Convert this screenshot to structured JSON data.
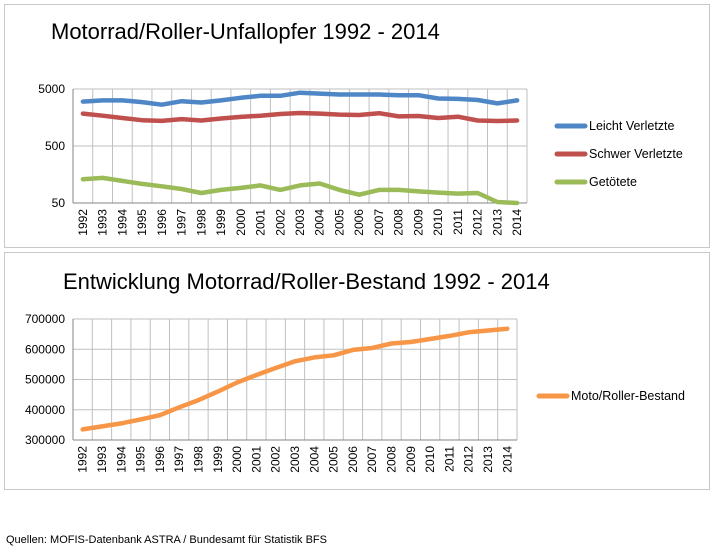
{
  "chart_data": [
    {
      "type": "line",
      "title": "Motorrad/Roller-Unfallopfer 1992 - 2014",
      "xlabel": "",
      "ylabel": "",
      "yscale": "log",
      "ylim": [
        50,
        5000
      ],
      "yticks": [
        50,
        500,
        5000
      ],
      "grid": true,
      "legend": "right",
      "categories": [
        "1992",
        "1993",
        "1994",
        "1995",
        "1996",
        "1997",
        "1998",
        "1999",
        "2000",
        "2001",
        "2002",
        "2003",
        "2004",
        "2005",
        "2006",
        "2007",
        "2008",
        "2009",
        "2010",
        "2011",
        "2012",
        "2013",
        "2014"
      ],
      "series": [
        {
          "name": "Leicht Verletzte",
          "color": "#4f86c6",
          "values": [
            3000,
            3150,
            3150,
            2950,
            2650,
            3050,
            2900,
            3150,
            3500,
            3800,
            3800,
            4300,
            4150,
            4000,
            4000,
            4000,
            3900,
            3900,
            3400,
            3350,
            3200,
            2800,
            3150
          ]
        },
        {
          "name": "Schwer Verletzte",
          "color": "#c0504d",
          "values": [
            1850,
            1700,
            1550,
            1420,
            1380,
            1480,
            1400,
            1520,
            1620,
            1700,
            1820,
            1900,
            1850,
            1780,
            1750,
            1880,
            1650,
            1680,
            1550,
            1630,
            1400,
            1370,
            1400
          ]
        },
        {
          "name": "Getötete",
          "color": "#9bbb59",
          "values": [
            130,
            138,
            122,
            108,
            98,
            88,
            75,
            85,
            92,
            102,
            85,
            102,
            110,
            85,
            70,
            85,
            85,
            80,
            76,
            73,
            75,
            52,
            50
          ]
        }
      ]
    },
    {
      "type": "line",
      "title": "Entwicklung Motorrad/Roller-Bestand 1992 - 2014",
      "xlabel": "",
      "ylabel": "",
      "ylim": [
        300000,
        700000
      ],
      "yticks": [
        300000,
        400000,
        500000,
        600000,
        700000
      ],
      "grid": true,
      "legend": "right",
      "categories": [
        "1992",
        "1993",
        "1994",
        "1995",
        "1996",
        "1997",
        "1998",
        "1999",
        "2000",
        "2001",
        "2002",
        "2003",
        "2004",
        "2005",
        "2006",
        "2007",
        "2008",
        "2009",
        "2010",
        "2011",
        "2012",
        "2013",
        "2014"
      ],
      "series": [
        {
          "name": "Moto/Roller-Bestand",
          "color": "#f79646",
          "values": [
            335000,
            345000,
            355000,
            368000,
            382000,
            408000,
            432000,
            460000,
            490000,
            515000,
            538000,
            560000,
            573000,
            580000,
            598000,
            604000,
            619000,
            624000,
            634000,
            644000,
            656000,
            662000,
            668000
          ]
        }
      ]
    }
  ],
  "source": "Quellen: MOFIS-Datenbank ASTRA / Bundesamt für Statistik BFS"
}
